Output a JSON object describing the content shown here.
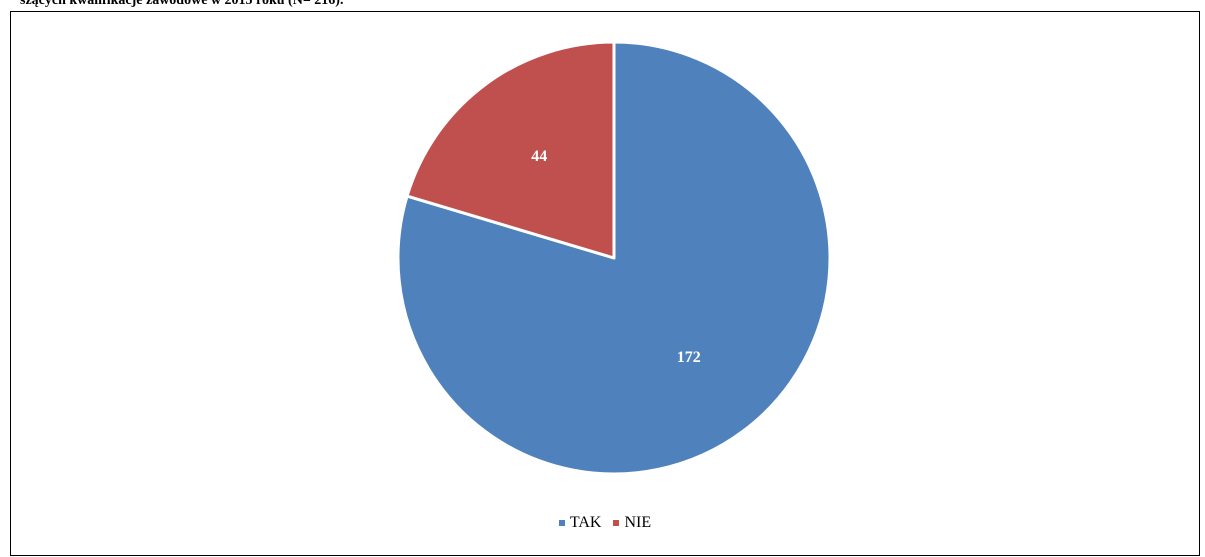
{
  "caption": "szących kwalifikacje zawodowe w 2015 roku (N= 216).",
  "chart_data": {
    "type": "pie",
    "categories": [
      "TAK",
      "NIE"
    ],
    "values": [
      172,
      44
    ],
    "data_labels": [
      "172",
      "44"
    ],
    "colors": [
      "#4F81BD",
      "#C0504D"
    ],
    "legend_position": "bottom",
    "start_angle": "12 o'clock",
    "direction": "clockwise",
    "label_color": "#FFFFFF"
  }
}
